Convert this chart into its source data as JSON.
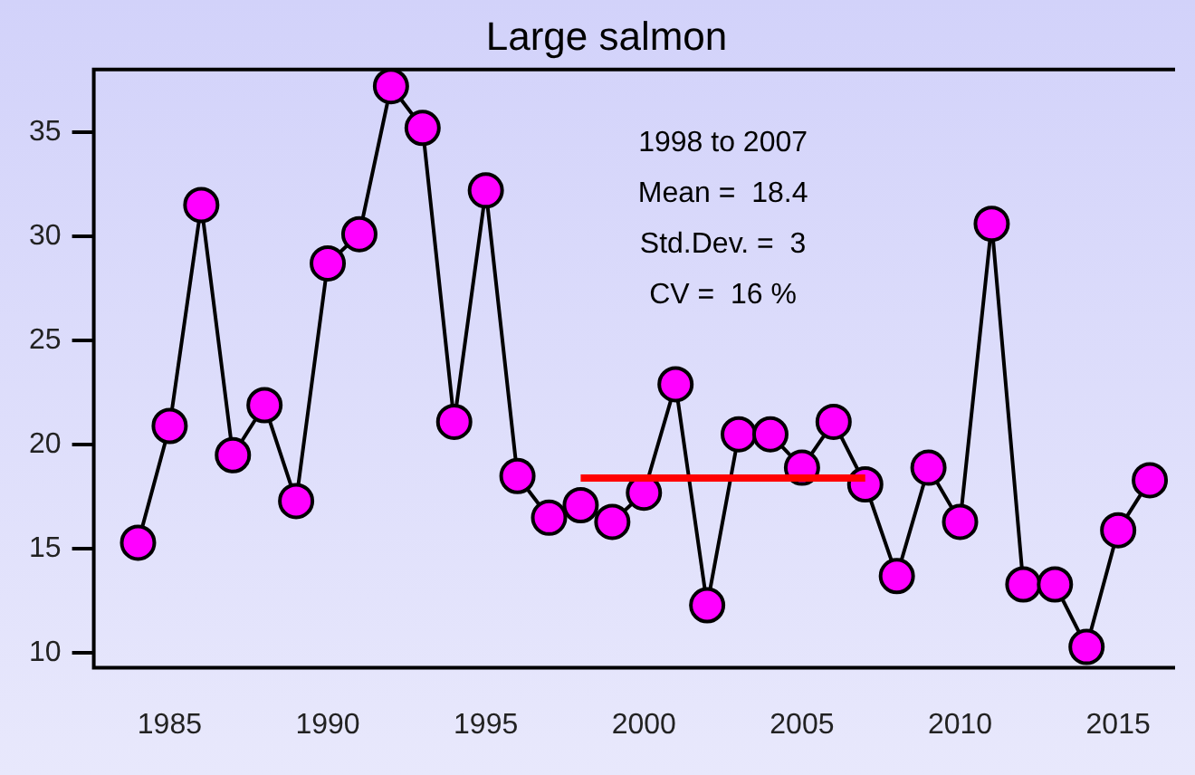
{
  "chart_data": {
    "type": "line",
    "title": "Large salmon",
    "x": [
      1984,
      1985,
      1986,
      1987,
      1988,
      1989,
      1990,
      1991,
      1992,
      1993,
      1994,
      1995,
      1996,
      1997,
      1998,
      1999,
      2000,
      2001,
      2002,
      2003,
      2004,
      2005,
      2006,
      2007,
      2008,
      2009,
      2010,
      2011,
      2012,
      2013,
      2014,
      2015,
      2016
    ],
    "series": [
      {
        "color": "#ff00ff",
        "marker": "circle",
        "values": [
          15.3,
          20.9,
          31.5,
          19.5,
          21.9,
          17.3,
          28.7,
          30.1,
          37.2,
          35.2,
          21.1,
          32.2,
          18.5,
          16.5,
          17.1,
          16.3,
          17.7,
          22.9,
          12.3,
          20.5,
          20.5,
          18.9,
          21.1,
          18.1,
          13.7,
          18.9,
          16.3,
          30.6,
          13.3,
          13.3,
          10.3,
          15.9,
          18.3
        ]
      },
      {
        "type": "line",
        "color": "#ff0000",
        "marker": "none",
        "x": [
          1998,
          2007
        ],
        "values": [
          18.4,
          18.4
        ]
      }
    ],
    "annotations": [
      "1998 to 2007",
      "Mean =  18.4",
      "Std.Dev. =  3",
      "CV =  16 %"
    ],
    "xlim": [
      1982.6,
      2016.8
    ],
    "xticks": [
      1985,
      1990,
      1995,
      2000,
      2005,
      2010,
      2015
    ],
    "ylim": [
      9.3,
      38
    ],
    "yticks": [
      10,
      15,
      20,
      25,
      30,
      35
    ],
    "grid": false,
    "legend": false
  }
}
